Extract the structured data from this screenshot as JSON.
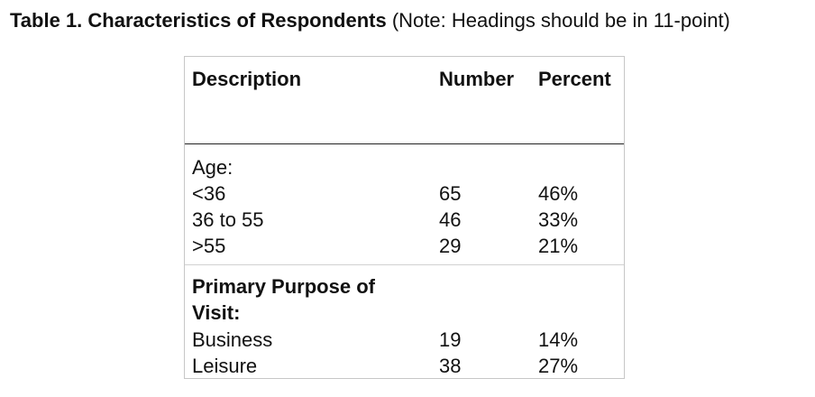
{
  "caption": {
    "title": "Table 1. Characteristics of Respondents",
    "note": "(Note: Headings should be in 11-point)"
  },
  "table": {
    "headers": {
      "description": "Description",
      "number": "Number",
      "percent": "Percent"
    },
    "sections": [
      {
        "label_lines": [
          "Age:"
        ],
        "rows": [
          {
            "description": "<36",
            "number": "65",
            "percent": "46%"
          },
          {
            "description": "36 to 55",
            "number": "46",
            "percent": "33%"
          },
          {
            "description": ">55",
            "number": "29",
            "percent": "21%"
          }
        ]
      },
      {
        "label_lines": [
          "Primary Purpose of",
          "Visit:"
        ],
        "rows": [
          {
            "description": "Business",
            "number": "19",
            "percent": "14%"
          },
          {
            "description": "Leisure",
            "number": "38",
            "percent": "27%"
          }
        ]
      }
    ]
  }
}
